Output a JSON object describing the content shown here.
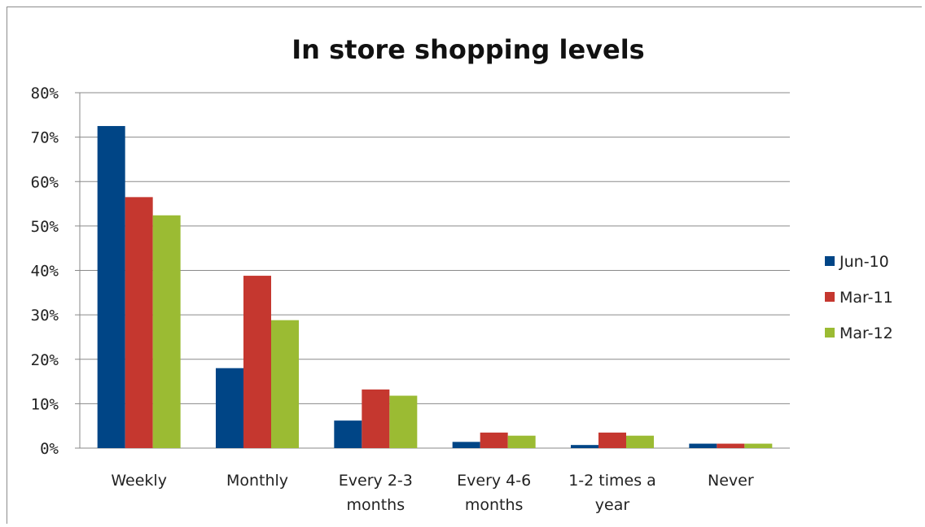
{
  "chart_data": {
    "type": "bar",
    "title": "In store shopping levels",
    "xlabel": "",
    "ylabel": "",
    "ylim": [
      0,
      80
    ],
    "yticks": [
      "0%",
      "10%",
      "20%",
      "30%",
      "40%",
      "50%",
      "60%",
      "70%",
      "80%"
    ],
    "grid": true,
    "legend_position": "right",
    "categories": [
      [
        "Weekly"
      ],
      [
        "Monthly"
      ],
      [
        "Every 2-3",
        "months"
      ],
      [
        "Every 4-6",
        "months"
      ],
      [
        "1-2 times a",
        "year"
      ],
      [
        "Never"
      ]
    ],
    "series": [
      {
        "name": "Jun-10",
        "color": "#004586",
        "values": [
          72.5,
          18,
          6.2,
          1.4,
          0.7,
          1.0
        ]
      },
      {
        "name": "Mar-11",
        "color": "#C5372F",
        "values": [
          56.5,
          38.8,
          13.2,
          3.5,
          3.5,
          1.0
        ]
      },
      {
        "name": "Mar-12",
        "color": "#9BBB33",
        "values": [
          52.4,
          28.8,
          11.8,
          2.8,
          2.8,
          1.0
        ]
      }
    ]
  }
}
